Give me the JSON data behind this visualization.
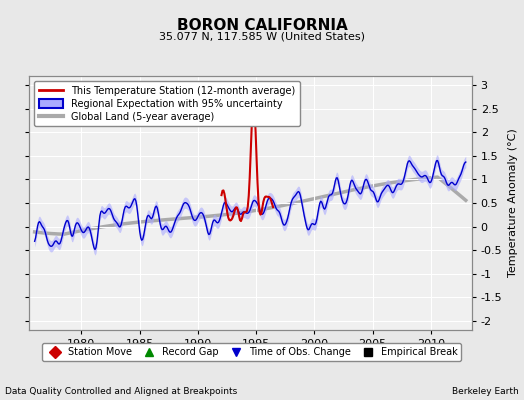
{
  "title": "BORON CALIFORNIA",
  "subtitle": "35.077 N, 117.585 W (United States)",
  "ylabel": "Temperature Anomaly (°C)",
  "xlabel_left": "Data Quality Controlled and Aligned at Breakpoints",
  "xlabel_right": "Berkeley Earth",
  "xlim": [
    1975.5,
    2013.5
  ],
  "ylim": [
    -2.2,
    3.2
  ],
  "yticks": [
    -2,
    -1.5,
    -1,
    -0.5,
    0,
    0.5,
    1,
    1.5,
    2,
    2.5,
    3
  ],
  "xticks": [
    1980,
    1985,
    1990,
    1995,
    2000,
    2005,
    2010
  ],
  "background_color": "#e8e8e8",
  "plot_bg_color": "#f0f0f0",
  "grid_color": "#d0d0d0",
  "station_color": "#cc0000",
  "regional_line_color": "#0000cc",
  "regional_fill_color": "#aaaaff",
  "global_land_color": "#aaaaaa",
  "legend_items": [
    {
      "label": "This Temperature Station (12-month average)",
      "color": "#cc0000",
      "lw": 2
    },
    {
      "label": "Regional Expectation with 95% uncertainty",
      "color": "#0000cc",
      "fill": "#aaaaff",
      "lw": 1.5
    },
    {
      "label": "Global Land (5-year average)",
      "color": "#aaaaaa",
      "lw": 3
    }
  ],
  "bottom_legend": [
    {
      "label": "Station Move",
      "color": "#cc0000",
      "marker": "D"
    },
    {
      "label": "Record Gap",
      "color": "#008800",
      "marker": "^"
    },
    {
      "label": "Time of Obs. Change",
      "color": "#0000cc",
      "marker": "v"
    },
    {
      "label": "Empirical Break",
      "color": "#000000",
      "marker": "s"
    }
  ],
  "seed": 17
}
